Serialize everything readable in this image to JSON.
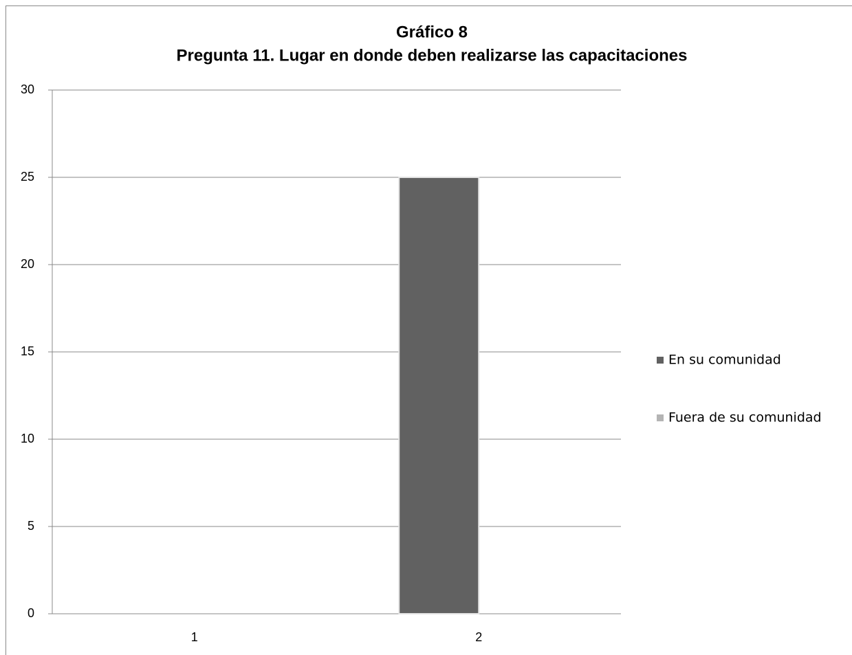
{
  "chart_data": {
    "type": "bar",
    "title": "Gráfico 8",
    "subtitle": "Pregunta 11. Lugar en donde deben realizarse las capacitaciones",
    "categories": [
      "1",
      "2"
    ],
    "series": [
      {
        "name": "En su comunidad",
        "color": "#616161",
        "values": [
          0,
          25
        ]
      },
      {
        "name": "Fuera de su comunidad",
        "color": "#b4b4b4",
        "values": [
          0,
          0
        ]
      }
    ],
    "ylim": [
      0,
      30
    ],
    "yticks": [
      0,
      5,
      10,
      15,
      20,
      25,
      30
    ],
    "grid": true,
    "legend": "right"
  }
}
